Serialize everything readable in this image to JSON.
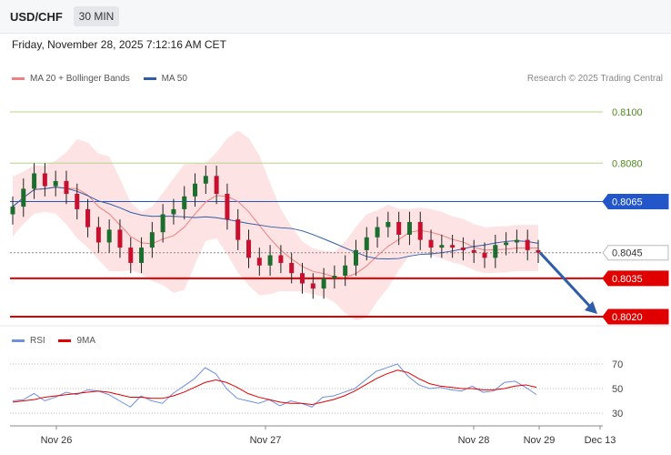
{
  "header": {
    "symbol": "USD/CHF",
    "timeframe": "30 MIN"
  },
  "datetime": "Friday, November 28, 2025 7:12:16 AM CET",
  "legend_main": {
    "ma20": "MA 20 + Bollinger Bands",
    "ma50": "MA 50"
  },
  "legend_rsi": {
    "rsi": "RSI",
    "ma9": "9MA"
  },
  "credit": "Research © 2025 Trading Central",
  "colors": {
    "bollinger_fill": "#fde3e3",
    "ma20": "#f08080",
    "ma50": "#2f5da8",
    "up_candle": "#1b6e2d",
    "down_candle": "#c8102e",
    "resistance": "#2256c9",
    "support": "#e00000",
    "target_line": "#b6d58c",
    "arrow": "#2f5da8"
  },
  "chart_data": [
    {
      "type": "candlestick",
      "xlabels": [
        "Nov 26",
        "Nov 27",
        "Nov 28",
        "Nov 29",
        "Dec 13"
      ],
      "ylim": [
        0.8015,
        0.81
      ],
      "levels": [
        {
          "value": 0.81,
          "label": "0.8100",
          "kind": "target"
        },
        {
          "value": 0.808,
          "label": "0.8080",
          "kind": "target"
        },
        {
          "value": 0.8065,
          "label": "0.8065",
          "kind": "pivot"
        },
        {
          "value": 0.8045,
          "label": "0.8045",
          "kind": "last"
        },
        {
          "value": 0.8035,
          "label": "0.8035",
          "kind": "support"
        },
        {
          "value": 0.802,
          "label": "0.8020",
          "kind": "support"
        }
      ],
      "close_path": [
        0.8063,
        0.807,
        0.8076,
        0.8071,
        0.8073,
        0.8068,
        0.8062,
        0.8055,
        0.8049,
        0.8054,
        0.8047,
        0.8041,
        0.8047,
        0.8053,
        0.806,
        0.8062,
        0.8067,
        0.8072,
        0.8075,
        0.8068,
        0.8058,
        0.805,
        0.8043,
        0.804,
        0.8044,
        0.8041,
        0.8037,
        0.8033,
        0.8031,
        0.8035,
        0.8036,
        0.804,
        0.8046,
        0.8051,
        0.8055,
        0.8057,
        0.8052,
        0.8057,
        0.805,
        0.8047,
        0.8048,
        0.8047,
        0.8046,
        0.8045,
        0.8043,
        0.8048,
        0.8049,
        0.805,
        0.8046,
        0.8045
      ],
      "forecast": {
        "from": 0.8045,
        "to": 0.802
      }
    },
    {
      "type": "line",
      "name": "RSI",
      "yticks": [
        70,
        50,
        30
      ],
      "levels": [
        70,
        50,
        30
      ],
      "rsi": [
        40,
        41,
        46,
        40,
        43,
        47,
        45,
        49,
        48,
        45,
        40,
        35,
        44,
        40,
        38,
        46,
        52,
        58,
        67,
        62,
        50,
        42,
        40,
        38,
        41,
        36,
        40,
        38,
        35,
        43,
        44,
        47,
        50,
        57,
        64,
        67,
        70,
        60,
        53,
        50,
        51,
        49,
        48,
        52,
        47,
        48,
        55,
        56,
        51,
        45
      ],
      "ma9": [
        39,
        40,
        41,
        43,
        44,
        45,
        46,
        47,
        48,
        47,
        45,
        43,
        43,
        42,
        42,
        44,
        47,
        51,
        55,
        57,
        55,
        51,
        46,
        43,
        41,
        39,
        38,
        38,
        37,
        39,
        41,
        44,
        48,
        53,
        58,
        62,
        65,
        63,
        58,
        54,
        52,
        51,
        50,
        50,
        49,
        49,
        50,
        52,
        53,
        51
      ]
    }
  ]
}
